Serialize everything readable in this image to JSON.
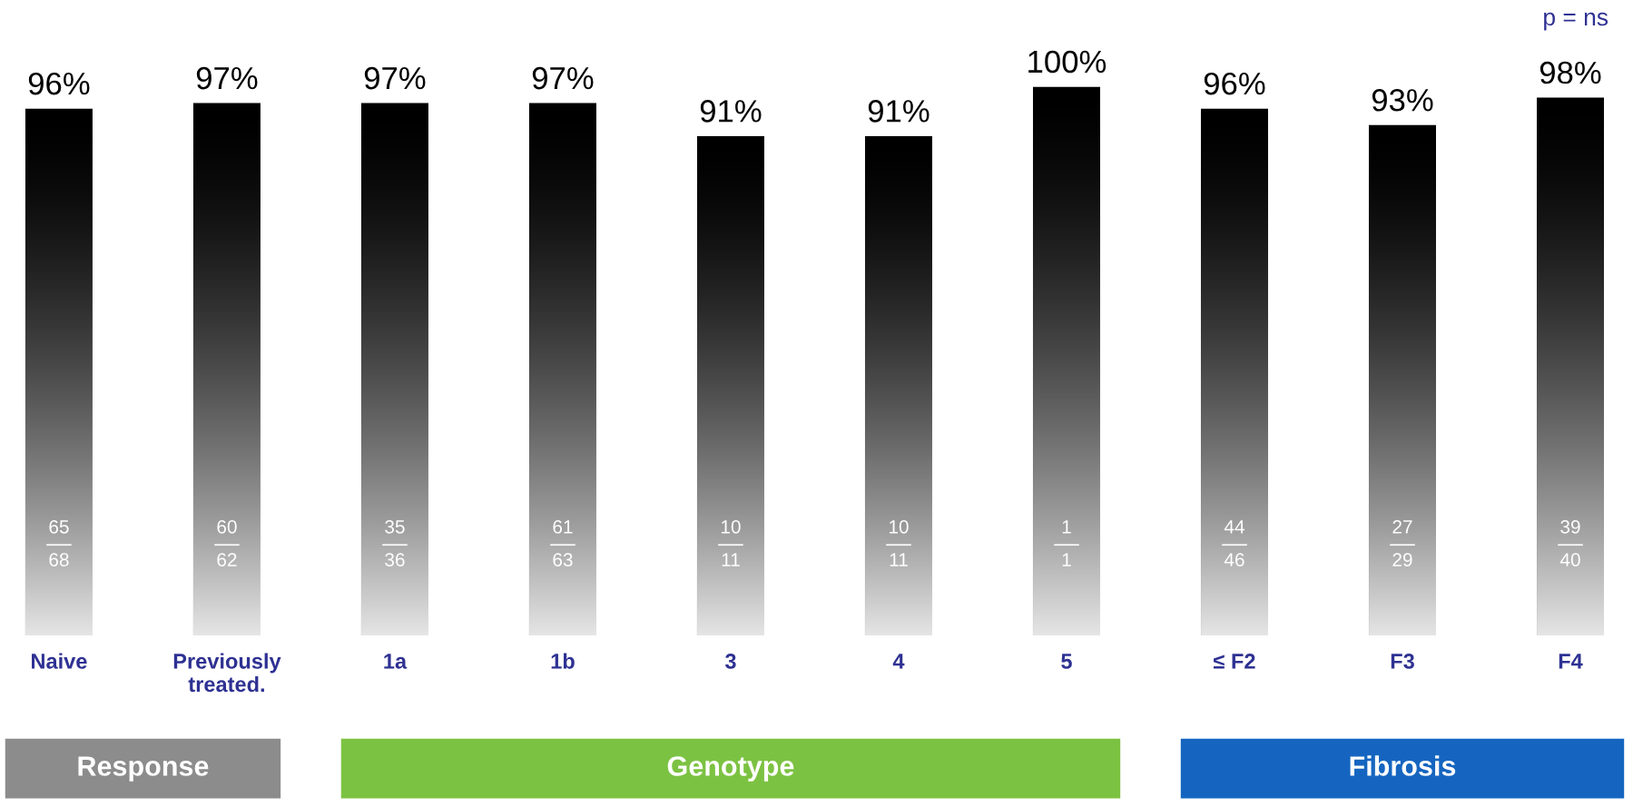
{
  "chart_data": {
    "type": "bar",
    "categories": [
      "Naive",
      "Previously\ntreated.",
      "1a",
      "1b",
      "3",
      "4",
      "5",
      "≤ F2",
      "F3",
      "F4"
    ],
    "values": [
      96,
      97,
      97,
      97,
      91,
      91,
      100,
      96,
      93,
      98
    ],
    "value_labels": [
      "96%",
      "97%",
      "97%",
      "97%",
      "91%",
      "91%",
      "100%",
      "96%",
      "93%",
      "98%"
    ],
    "color": "#000000",
    "tick_labels": "x",
    "annotations": [
      "65",
      "68",
      "60",
      "62",
      "35",
      "36",
      "61",
      "63",
      "10",
      "11",
      "10",
      "11",
      "1",
      "1",
      "44",
      "46",
      "27",
      "29",
      "39",
      "40",
      "p = ns",
      "Response",
      "Genotype",
      "Fibrosis"
    ]
  }
}
